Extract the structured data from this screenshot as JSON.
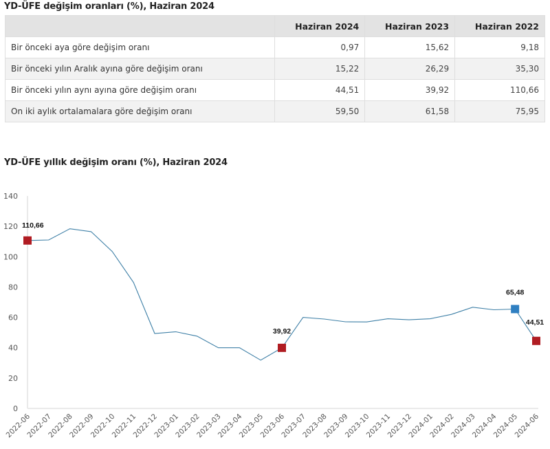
{
  "table": {
    "title": "YD-ÜFE değişim oranları (%), Haziran 2024",
    "columns": [
      "",
      "Haziran 2024",
      "Haziran 2023",
      "Haziran 2022"
    ],
    "rows": [
      {
        "label": "Bir önceki aya göre değişim oranı",
        "values": [
          "0,97",
          "15,62",
          "9,18"
        ]
      },
      {
        "label": "Bir önceki yılın Aralık ayına göre değişim oranı",
        "values": [
          "15,22",
          "26,29",
          "35,30"
        ]
      },
      {
        "label": "Bir önceki yılın aynı ayına göre değişim oranı",
        "values": [
          "44,51",
          "39,92",
          "110,66"
        ]
      },
      {
        "label": "On iki aylık ortalamalara göre değişim oranı",
        "values": [
          "59,50",
          "61,58",
          "75,95"
        ]
      }
    ]
  },
  "chart": {
    "title": "YD-ÜFE yıllık değişim oranı (%), Haziran 2024"
  },
  "chart_data": {
    "type": "line",
    "title": "YD-ÜFE yıllık değişim oranı (%), Haziran 2024",
    "xlabel": "",
    "ylabel": "",
    "ylim": [
      0,
      140
    ],
    "yticks": [
      0,
      20,
      40,
      60,
      80,
      100,
      120,
      140
    ],
    "grid": false,
    "legend": null,
    "categories": [
      "2022-06",
      "2022-07",
      "2022-08",
      "2022-09",
      "2022-10",
      "2022-11",
      "2022-12",
      "2023-01",
      "2023-02",
      "2023-03",
      "2023-04",
      "2023-05",
      "2023-06",
      "2023-07",
      "2023-08",
      "2023-09",
      "2023-10",
      "2023-11",
      "2023-12",
      "2024-01",
      "2024-02",
      "2024-03",
      "2024-04",
      "2024-05",
      "2024-06"
    ],
    "series": [
      {
        "name": "YD-ÜFE yıllık değişim oranı",
        "color": "#3d7fa6",
        "values": [
          110.66,
          111.0,
          118.4,
          116.5,
          103.4,
          83.0,
          49.4,
          50.5,
          47.6,
          40.0,
          40.0,
          31.8,
          39.92,
          60.0,
          58.9,
          57.1,
          57.0,
          59.1,
          58.4,
          59.1,
          62.0,
          66.7,
          65.0,
          65.48,
          44.51
        ]
      }
    ],
    "annotations": [
      {
        "category": "2022-06",
        "label": "110,66",
        "marker_color": "#b01c22"
      },
      {
        "category": "2023-06",
        "label": "39,92",
        "marker_color": "#b01c22"
      },
      {
        "category": "2024-05",
        "label": "65,48",
        "marker_color": "#2f7fc1"
      },
      {
        "category": "2024-06",
        "label": "44,51",
        "marker_color": "#b01c22"
      }
    ]
  },
  "colors": {
    "line": "#3d7fa6",
    "highlight_red": "#b01c22",
    "highlight_blue": "#2f7fc1",
    "header_bg": "#e3e3e3",
    "row_alt_bg": "#f2f2f2",
    "border": "#dedede"
  }
}
